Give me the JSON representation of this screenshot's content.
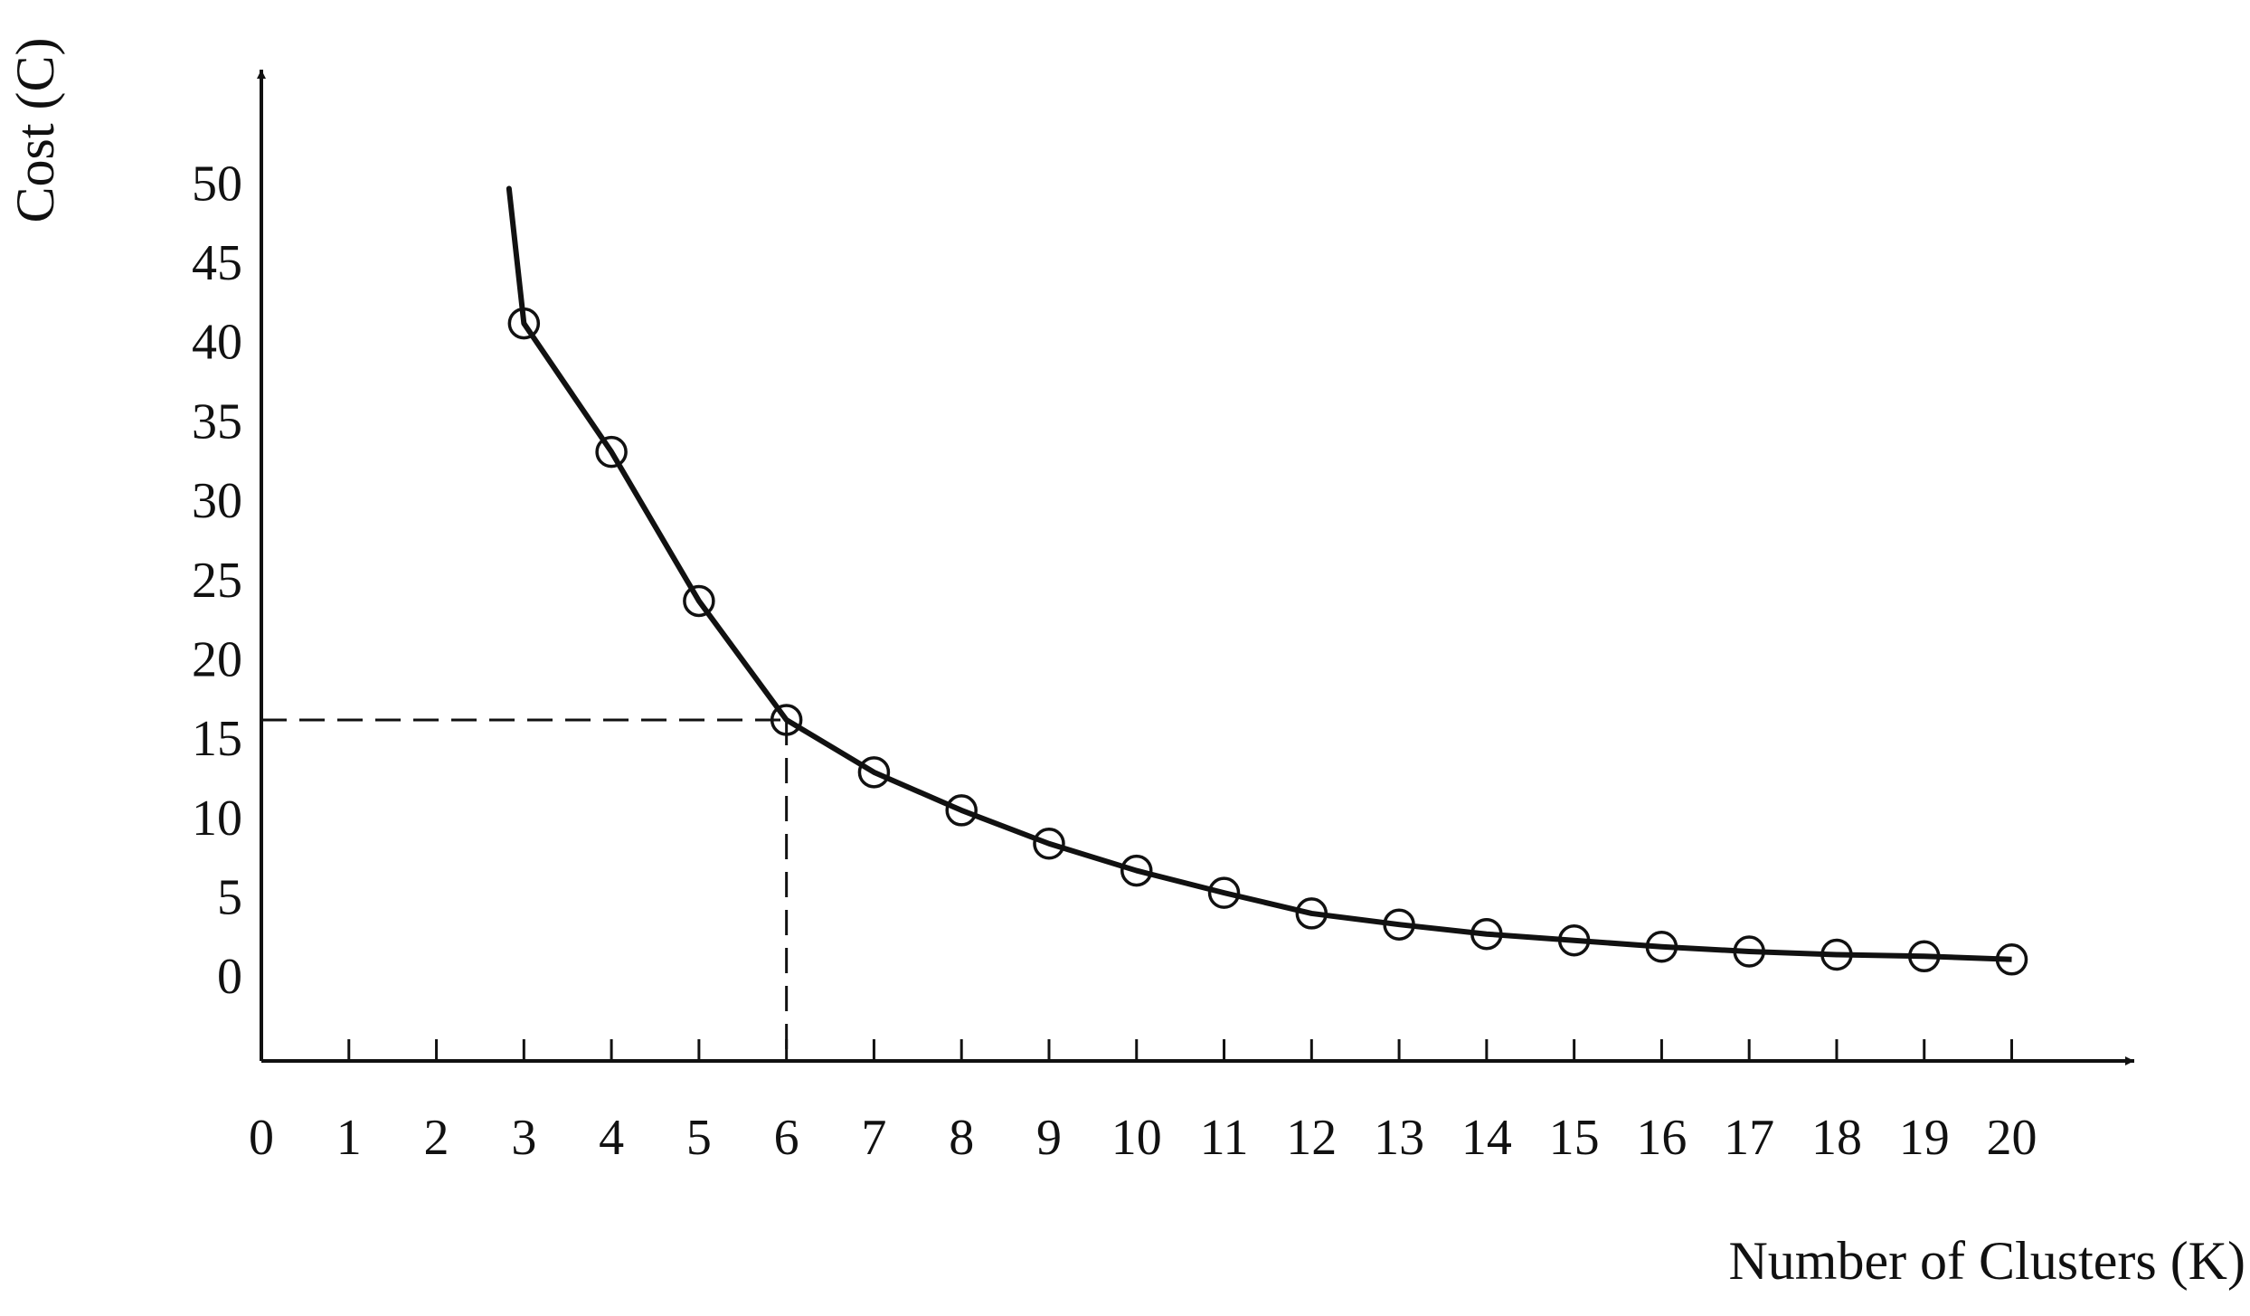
{
  "chart_data": {
    "type": "line",
    "x_label": "Number of Clusters (K)",
    "y_label": "Cost (C)",
    "x": [
      3,
      4,
      5,
      6,
      7,
      8,
      9,
      10,
      11,
      12,
      13,
      14,
      15,
      16,
      17,
      18,
      19,
      20
    ],
    "series": [
      {
        "color": "#111111",
        "values": [
          41.5,
          33.4,
          24,
          16.5,
          13.2,
          10.8,
          8.7,
          7,
          5.6,
          4.3,
          3.6,
          3,
          2.6,
          2.2,
          1.9,
          1.7,
          1.6,
          1.4
        ]
      }
    ],
    "lead_in": {
      "x": 2.83,
      "y": 50
    },
    "reference": {
      "x": 6,
      "y": 16.5
    },
    "xlim": [
      0,
      21.4
    ],
    "ylim": [
      -5,
      57.5
    ],
    "xticks": [
      0,
      1,
      2,
      3,
      4,
      5,
      6,
      7,
      8,
      9,
      10,
      11,
      12,
      13,
      14,
      15,
      16,
      17,
      18,
      19,
      20
    ],
    "yticks": [
      0,
      5,
      10,
      15,
      20,
      25,
      30,
      35,
      40,
      45,
      50
    ],
    "grid": false
  }
}
